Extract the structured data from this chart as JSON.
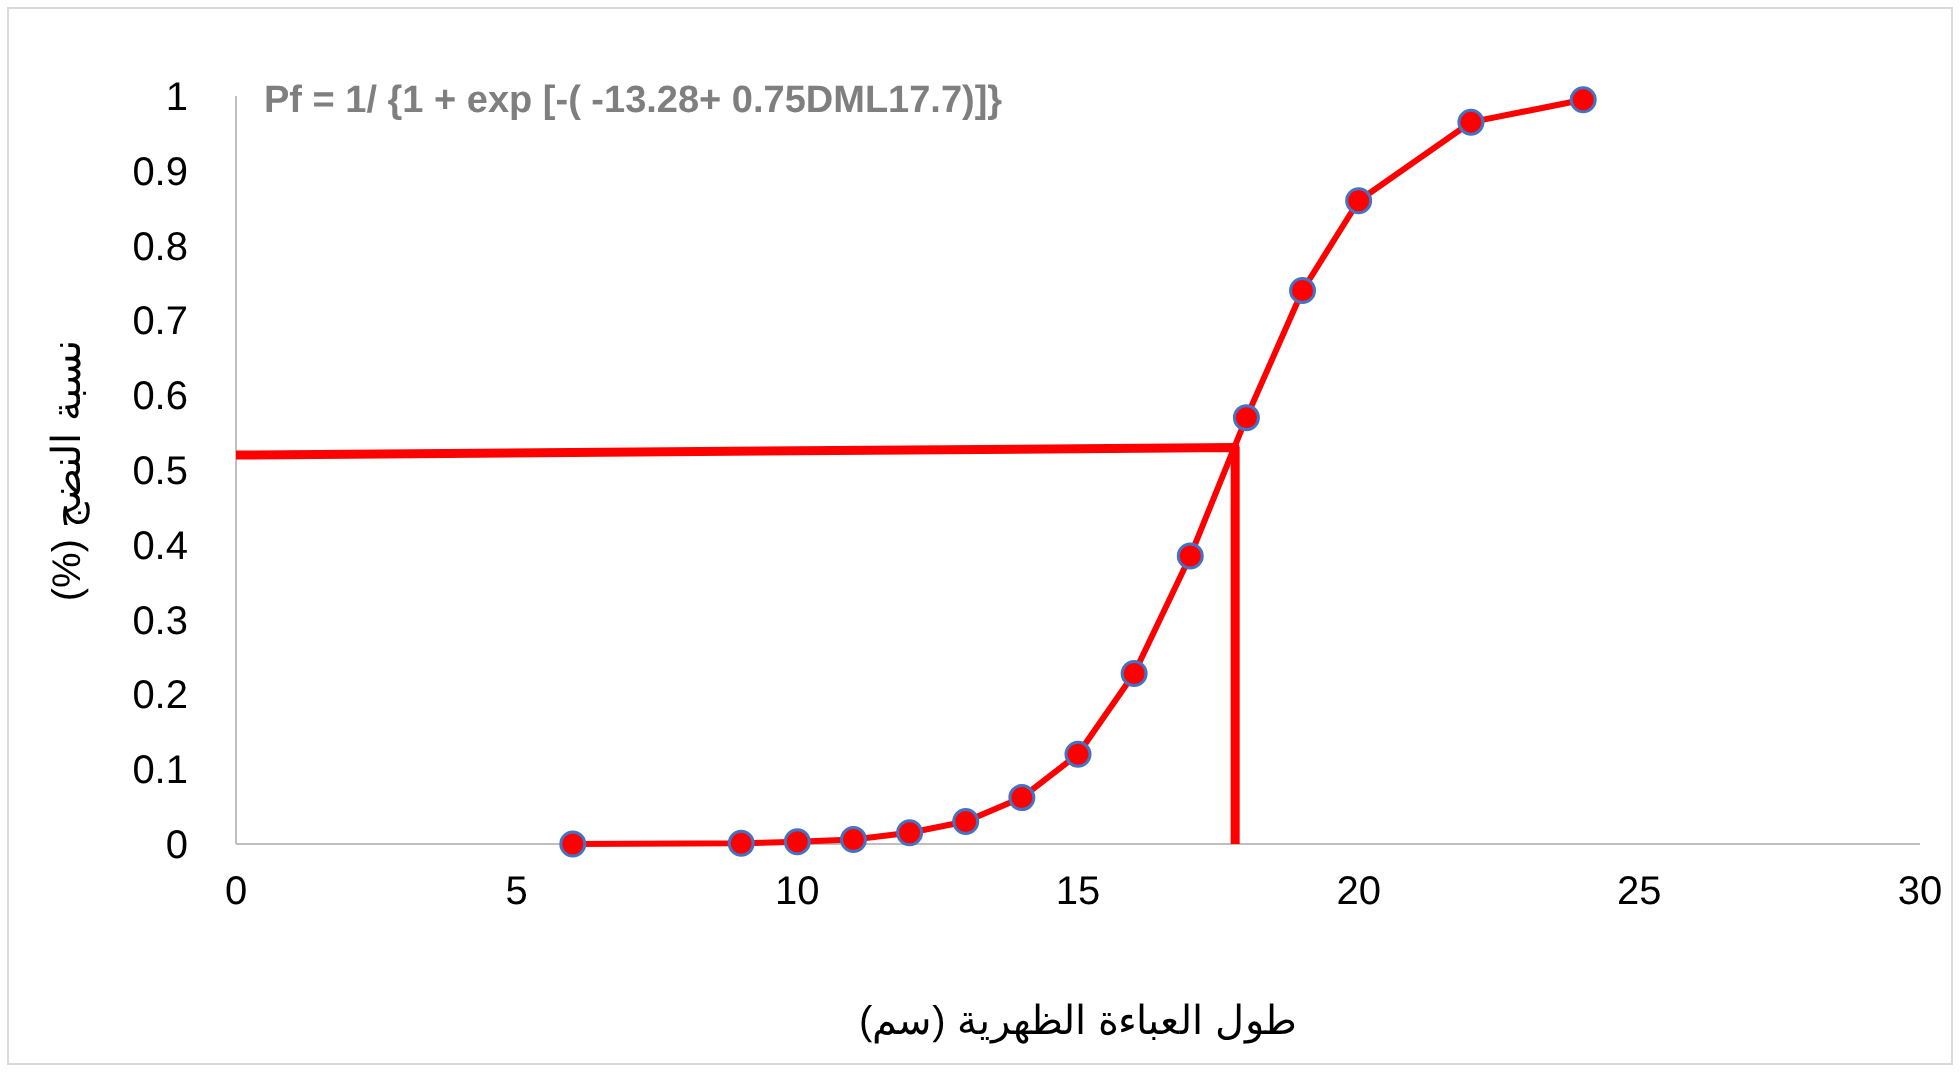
{
  "chart_data": {
    "type": "line",
    "xlabel": "طول العباءة الظهرية (سم)",
    "ylabel": "نسبة النضج (%)",
    "annotations": [
      "Pf = 1/ {1 + exp [-( -13.28+ 0.75DML17.7)]}"
    ],
    "xlim": [
      0,
      30
    ],
    "xticks": [
      0,
      5,
      10,
      15,
      20,
      25,
      30
    ],
    "ylim": [
      0,
      1
    ],
    "yticks": [
      0,
      0.1,
      0.2,
      0.3,
      0.4,
      0.5,
      0.6,
      0.7,
      0.8,
      0.9,
      1
    ],
    "marker": "circle",
    "line_style": "solid",
    "series": [
      {
        "color": "#ff0000",
        "x": [
          6,
          9,
          10,
          11,
          12,
          13,
          14,
          15,
          16,
          17,
          18,
          19,
          20,
          22,
          24
        ],
        "values": [
          0,
          0.001,
          0.003,
          0.006,
          0.015,
          0.03,
          0.062,
          0.12,
          0.228,
          0.385,
          0.57,
          0.74,
          0.86,
          0.965,
          0.995
        ]
      },
      {
        "color": "#ff0000",
        "marker": "none",
        "x": [
          0,
          17.8,
          17.8
        ],
        "values": [
          0.52,
          0.53,
          0
        ]
      }
    ]
  }
}
